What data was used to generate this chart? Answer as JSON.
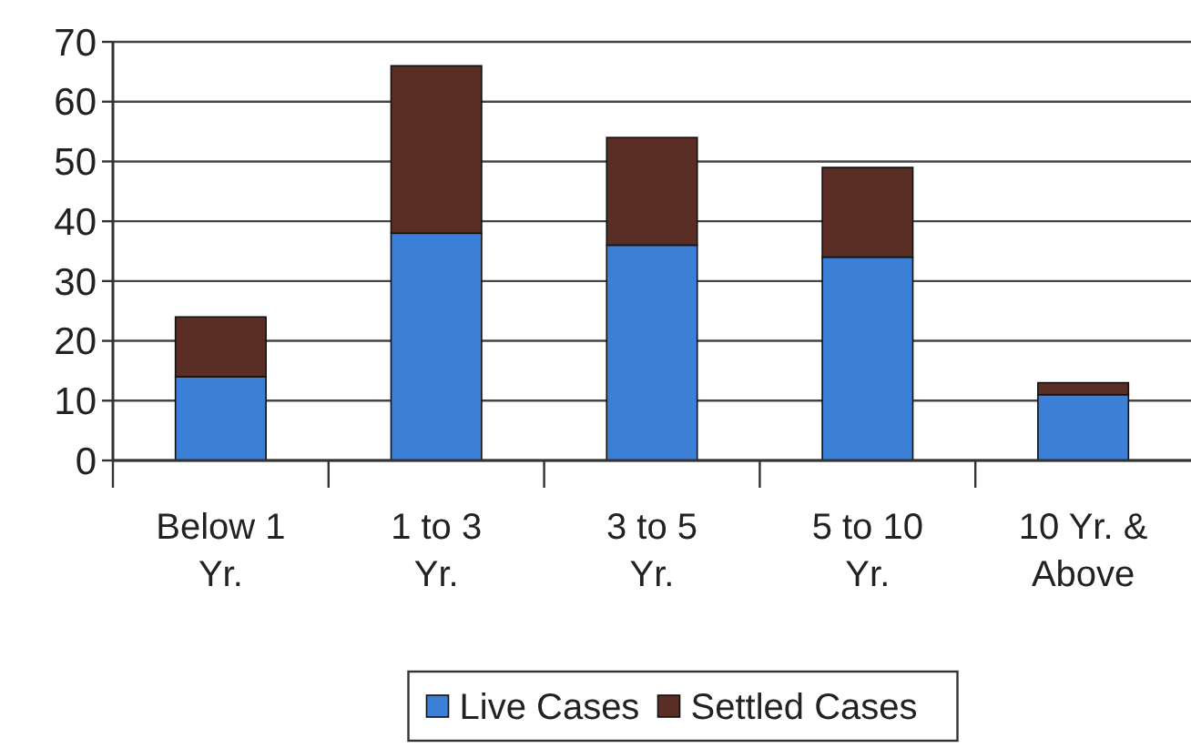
{
  "chart_data": {
    "type": "bar",
    "stacked": true,
    "categories": [
      "Below 1 Yr.",
      "1 to 3 Yr.",
      "3 to 5 Yr.",
      "5 to 10 Yr.",
      "10 Yr. & Above"
    ],
    "series": [
      {
        "name": "Live Cases",
        "color": "#3b80d6",
        "values": [
          14,
          38,
          36,
          34,
          11
        ]
      },
      {
        "name": "Settled Cases",
        "color": "#5a2e24",
        "values": [
          10,
          28,
          18,
          15,
          2
        ]
      }
    ],
    "ylim": [
      0,
      70
    ],
    "yticks": [
      0,
      10,
      20,
      30,
      40,
      50,
      60,
      70
    ],
    "grid": "y",
    "legend": "bottom"
  }
}
